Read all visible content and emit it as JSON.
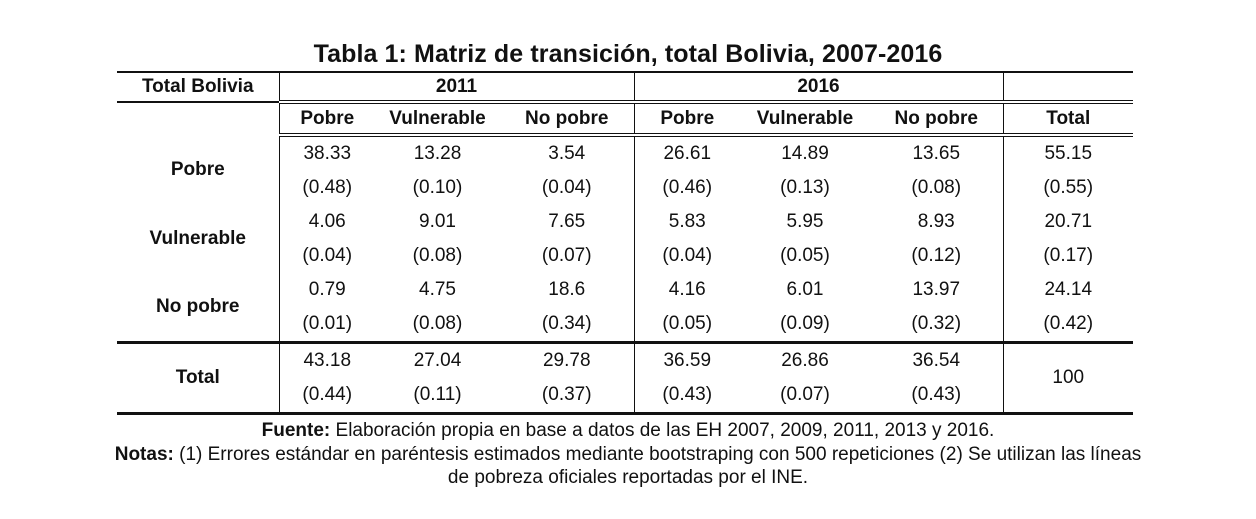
{
  "title": "Tabla 1: Matriz de transición, total Bolivia, 2007-2016",
  "header": {
    "corner": "Total Bolivia",
    "year1": "2011",
    "year2": "2016"
  },
  "subheaders": [
    "Pobre",
    "Vulnerable",
    "No pobre",
    "Pobre",
    "Vulnerable",
    "No pobre",
    "Total"
  ],
  "rows": [
    {
      "label": "Pobre",
      "values": [
        "38.33",
        "13.28",
        "3.54",
        "26.61",
        "14.89",
        "13.65",
        "55.15"
      ],
      "se": [
        "(0.48)",
        "(0.10)",
        "(0.04)",
        "(0.46)",
        "(0.13)",
        "(0.08)",
        "(0.55)"
      ]
    },
    {
      "label": "Vulnerable",
      "values": [
        "4.06",
        "9.01",
        "7.65",
        "5.83",
        "5.95",
        "8.93",
        "20.71"
      ],
      "se": [
        "(0.04)",
        "(0.08)",
        "(0.07)",
        "(0.04)",
        "(0.05)",
        "(0.12)",
        "(0.17)"
      ]
    },
    {
      "label": "No pobre",
      "values": [
        "0.79",
        "4.75",
        "18.6",
        "4.16",
        "6.01",
        "13.97",
        "24.14"
      ],
      "se": [
        "(0.01)",
        "(0.08)",
        "(0.34)",
        "(0.05)",
        "(0.09)",
        "(0.32)",
        "(0.42)"
      ]
    },
    {
      "label": "Total",
      "values": [
        "43.18",
        "27.04",
        "29.78",
        "36.59",
        "26.86",
        "36.54",
        "100"
      ],
      "se": [
        "(0.44)",
        "(0.11)",
        "(0.37)",
        "(0.43)",
        "(0.07)",
        "(0.43)",
        ""
      ]
    }
  ],
  "footer": {
    "source_label": "Fuente:",
    "source_text": " Elaboración propia en base a datos de las EH 2007, 2009, 2011, 2013 y 2016.",
    "notes_label": "Notas:",
    "notes_text": " (1) Errores estándar en paréntesis estimados mediante bootstraping con 500 repeticiones (2) Se utilizan las líneas",
    "notes_text2": "de pobreza oficiales reportadas por el INE."
  }
}
